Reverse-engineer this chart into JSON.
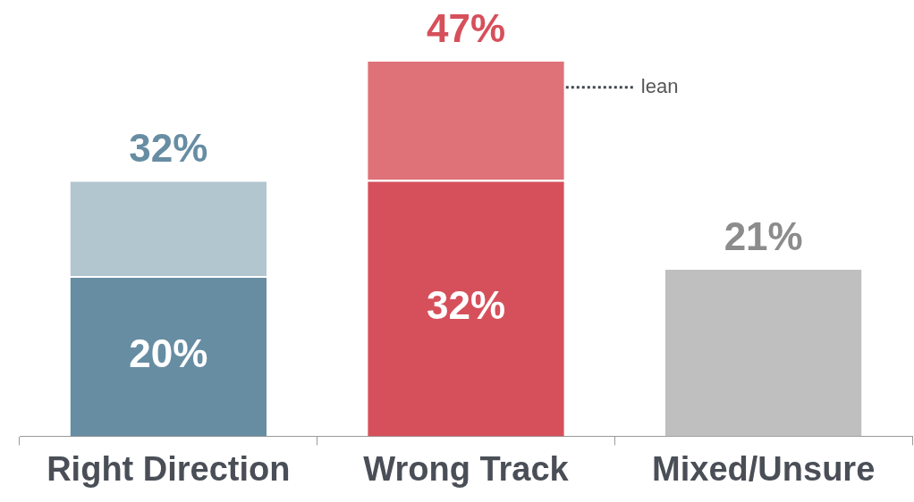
{
  "chart_data": {
    "type": "bar",
    "stacked": true,
    "categories": [
      "Right Direction",
      "Wrong Track",
      "Mixed/Unsure"
    ],
    "series": [
      {
        "colors": [
          "#678da3",
          "#d6505b",
          "#bfbfbf"
        ],
        "values": [
          20,
          32,
          21
        ],
        "value_labels": [
          "20%",
          "32%",
          null
        ]
      },
      {
        "name": "lean",
        "colors": [
          "#b2c6cf",
          "#df7278",
          null
        ],
        "values": [
          12,
          15,
          null
        ]
      }
    ],
    "totals": [
      "32%",
      "47%",
      "21%"
    ],
    "grid": false,
    "legend": false,
    "tick_labels": "x"
  }
}
